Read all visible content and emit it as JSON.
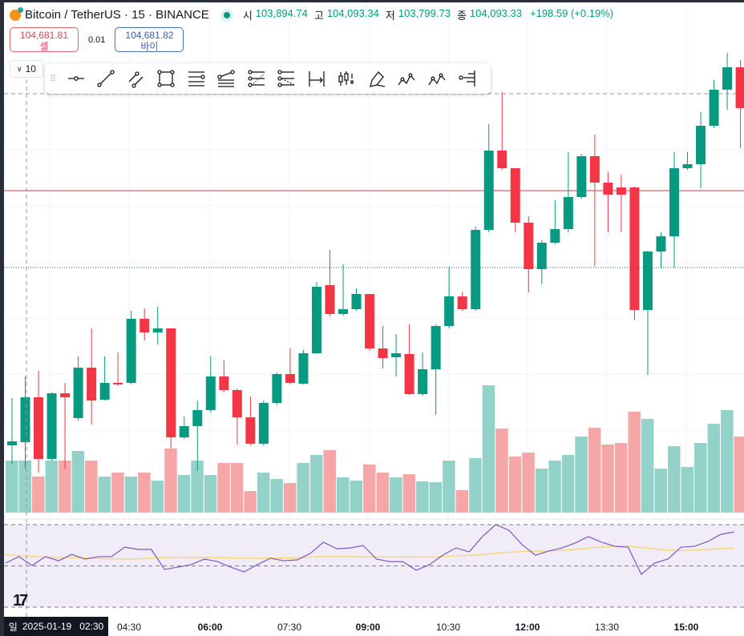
{
  "header": {
    "symbol": "Bitcoin / TetherUS · 15 · BINANCE",
    "ohlc": [
      {
        "label": "시",
        "value": "103,894.74"
      },
      {
        "label": "고",
        "value": "104,093.34"
      },
      {
        "label": "저",
        "value": "103,799.73"
      },
      {
        "label": "종",
        "value": "104,093.33"
      }
    ],
    "change": "+198.59 (+0.19%)"
  },
  "trade": {
    "sell_price": "104,681.81",
    "sell_label": "셀",
    "spread": "0.01",
    "buy_price": "104,681.82",
    "buy_label": "바이"
  },
  "interval_selector": "10",
  "toolbar_tools": [
    "horizontal-ray",
    "trend-line",
    "parallel-channel",
    "rectangle",
    "horizontal-lines",
    "fib-retracement",
    "pitchfork",
    "fib-channel",
    "date-range",
    "long-position",
    "highlighter",
    "elliott-wave",
    "abcd-pattern",
    "volume-profile"
  ],
  "colors": {
    "up": "#089981",
    "down": "#f23645",
    "vol_up": "#93d2c8",
    "vol_down": "#f5a6a6",
    "rsi": "#7e57c2",
    "rsi_ma": "#f7d87c",
    "rsi_bg": "#f0edf9"
  },
  "x_axis": {
    "crosshair_label_day": "일",
    "crosshair_label": "2025-01-19   02:30",
    "ticks": [
      {
        "label": "04:30",
        "bold": false
      },
      {
        "label": "06:00",
        "bold": true
      },
      {
        "label": "07:30",
        "bold": false
      },
      {
        "label": "09:00",
        "bold": true
      },
      {
        "label": "10:30",
        "bold": false
      },
      {
        "label": "12:00",
        "bold": true
      },
      {
        "label": "13:30",
        "bold": false
      },
      {
        "label": "15:00",
        "bold": true
      }
    ]
  },
  "chart_data": {
    "type": "candlestick",
    "interval_minutes": 15,
    "price_lines": {
      "dashed": 104083,
      "red": 103841,
      "green_dotted": 103649
    },
    "candles": [
      [
        103205,
        103323,
        103157,
        103215
      ],
      [
        103213,
        103377,
        103147,
        103325
      ],
      [
        103325,
        103391,
        103137,
        103171
      ],
      [
        103171,
        103337,
        103167,
        103335
      ],
      [
        103335,
        103361,
        103147,
        103325
      ],
      [
        103273,
        103427,
        103267,
        103399
      ],
      [
        103399,
        103497,
        103257,
        103317
      ],
      [
        103319,
        103427,
        103317,
        103361
      ],
      [
        103361,
        103437,
        103353,
        103357
      ],
      [
        103361,
        103541,
        103357,
        103521
      ],
      [
        103521,
        103547,
        103467,
        103487
      ],
      [
        103487,
        103551,
        103457,
        103497
      ],
      [
        103497,
        103497,
        103197,
        103225
      ],
      [
        103225,
        103277,
        103221,
        103253
      ],
      [
        103253,
        103317,
        103141,
        103293
      ],
      [
        103293,
        103427,
        103287,
        103377
      ],
      [
        103377,
        103417,
        103337,
        103343
      ],
      [
        103343,
        103347,
        103207,
        103275
      ],
      [
        103275,
        103327,
        103205,
        103209
      ],
      [
        103209,
        103317,
        103205,
        103311
      ],
      [
        103311,
        103387,
        103307,
        103383
      ],
      [
        103383,
        103447,
        103357,
        103361
      ],
      [
        103359,
        103443,
        103357,
        103435
      ],
      [
        103435,
        103613,
        103433,
        103601
      ],
      [
        103605,
        103693,
        103527,
        103533
      ],
      [
        103533,
        103657,
        103529,
        103545
      ],
      [
        103545,
        103597,
        103541,
        103583
      ],
      [
        103583,
        103583,
        103441,
        103447
      ],
      [
        103447,
        103503,
        103397,
        103423
      ],
      [
        103425,
        103483,
        103377,
        103435
      ],
      [
        103433,
        103507,
        103331,
        103333
      ],
      [
        103333,
        103437,
        103329,
        103395
      ],
      [
        103395,
        103507,
        103281,
        103503
      ],
      [
        103503,
        103651,
        103497,
        103577
      ],
      [
        103577,
        103587,
        103541,
        103545
      ],
      [
        103545,
        103751,
        103541,
        103743
      ],
      [
        103743,
        104007,
        103737,
        103941
      ],
      [
        103941,
        104087,
        103893,
        103897
      ],
      [
        103897,
        103897,
        103737,
        103761
      ],
      [
        103761,
        103777,
        103587,
        103645
      ],
      [
        103645,
        103717,
        103607,
        103711
      ],
      [
        103711,
        103817,
        103707,
        103745
      ],
      [
        103745,
        103937,
        103737,
        103825
      ],
      [
        103825,
        103933,
        103821,
        103927
      ],
      [
        103927,
        103981,
        103653,
        103861
      ],
      [
        103861,
        103887,
        103737,
        103831
      ],
      [
        103849,
        103881,
        103737,
        103831
      ],
      [
        103849,
        103851,
        103517,
        103543
      ],
      [
        103543,
        103691,
        103381,
        103689
      ],
      [
        103689,
        103737,
        103647,
        103727
      ],
      [
        103727,
        103937,
        103649,
        103897
      ],
      [
        103897,
        103937,
        103893,
        103907
      ],
      [
        103907,
        104037,
        103847,
        104003
      ],
      [
        104003,
        104117,
        103997,
        104093
      ],
      [
        104093,
        104185,
        104043,
        104149
      ],
      [
        104149,
        104167,
        103947,
        104047
      ]
    ],
    "volume": [
      65,
      65,
      45,
      65,
      65,
      77,
      65,
      45,
      50,
      45,
      50,
      40,
      80,
      47,
      65,
      47,
      62,
      62,
      27,
      50,
      42,
      37,
      62,
      72,
      78,
      44,
      40,
      60,
      50,
      44,
      48,
      39,
      38,
      65,
      28,
      68,
      159,
      105,
      70,
      75,
      55,
      65,
      72,
      95,
      106,
      85,
      87,
      126,
      117,
      55,
      83,
      57,
      87,
      111,
      128,
      95
    ],
    "rsi": [
      51.4,
      54.5,
      50.2,
      54.5,
      52.5,
      55.6,
      53.3,
      54.5,
      54.5,
      59.1,
      58.0,
      58.0,
      48.3,
      49.4,
      50.6,
      53.3,
      52.1,
      49.4,
      47.1,
      50.6,
      53.7,
      52.5,
      52.9,
      56.0,
      61.5,
      58.3,
      58.7,
      59.9,
      53.3,
      52.1,
      52.1,
      47.9,
      50.6,
      55.2,
      58.7,
      56.8,
      64.2,
      70.0,
      67.3,
      60.3,
      55.2,
      57.2,
      58.7,
      61.1,
      64.2,
      61.5,
      59.5,
      59.1,
      45.9,
      51.4,
      53.3,
      59.1,
      59.5,
      61.8,
      65.3,
      66.5
    ],
    "rsi_ma": [
      55.5,
      55.0,
      54.6,
      54.3,
      54.1,
      54.0,
      53.8,
      53.6,
      53.4,
      53.3,
      53.4,
      53.8,
      54.1,
      54.2,
      54.2,
      54.1,
      54.0,
      53.9,
      53.8,
      53.7,
      53.8,
      53.8,
      54.0,
      54.3,
      54.6,
      54.5,
      54.5,
      54.4,
      54.3,
      54.3,
      54.3,
      54.3,
      54.3,
      54.5,
      54.9,
      55.1,
      55.5,
      56.1,
      56.6,
      57.0,
      57.1,
      57.2,
      57.5,
      58.0,
      58.6,
      59.2,
      59.5,
      59.6,
      59.0,
      58.3,
      57.6,
      57.4,
      57.6,
      58.0,
      58.4,
      58.6
    ],
    "rsi_bands": [
      70,
      50,
      30
    ]
  }
}
